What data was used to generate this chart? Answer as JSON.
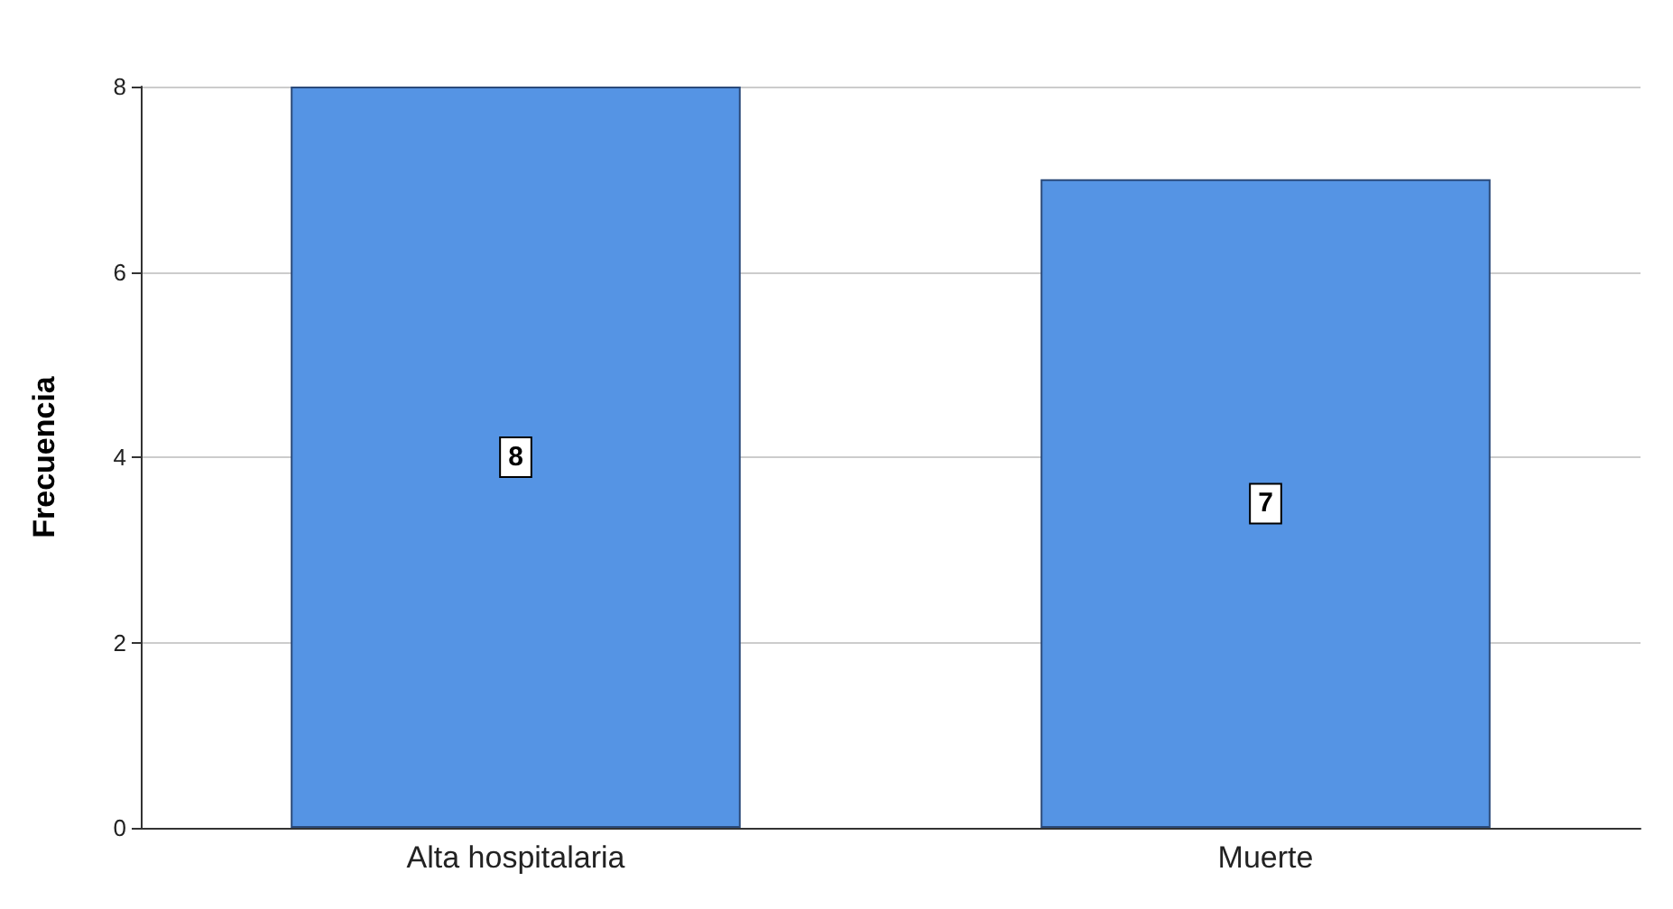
{
  "chart_data": {
    "type": "bar",
    "ylabel": "Frecuencia",
    "categories": [
      "Alta hospitalaria",
      "Muerte"
    ],
    "values": [
      8,
      7
    ],
    "color": "#5594e4",
    "ylim": [
      0,
      8
    ],
    "yticks": [
      0,
      2,
      4,
      6,
      8
    ],
    "grid": "y",
    "data_labels": true
  }
}
